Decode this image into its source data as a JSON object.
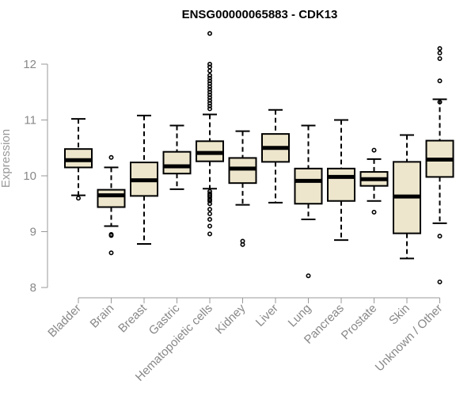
{
  "chart_data": {
    "type": "box",
    "title": "ENSG00000065883 - CDK13",
    "xlabel": "",
    "ylabel": "Expression",
    "ylim": [
      8,
      12.6
    ],
    "yticks": [
      8,
      9,
      10,
      11,
      12
    ],
    "grid": false,
    "legend": "none",
    "colors": {
      "box_fill": "#ede6cc",
      "stroke": "#000000",
      "text": "#888888"
    },
    "categories": [
      "Bladder",
      "Brain",
      "Breast",
      "Gastric",
      "Hematopoietic cells",
      "Kidney",
      "Liver",
      "Lung",
      "Pancreas",
      "Prostate",
      "Skin",
      "Unknown / Other"
    ],
    "boxes": [
      {
        "q1": 10.15,
        "median": 10.28,
        "q3": 10.48,
        "low": 9.65,
        "high": 11.02,
        "outliers": [
          9.6
        ]
      },
      {
        "q1": 9.44,
        "median": 9.65,
        "q3": 9.75,
        "low": 9.1,
        "high": 10.15,
        "outliers": [
          10.33,
          8.95,
          8.93,
          8.62
        ]
      },
      {
        "q1": 9.64,
        "median": 9.92,
        "q3": 10.24,
        "low": 8.78,
        "high": 11.08,
        "outliers": []
      },
      {
        "q1": 10.04,
        "median": 10.17,
        "q3": 10.43,
        "low": 9.76,
        "high": 10.9,
        "outliers": []
      },
      {
        "q1": 10.26,
        "median": 10.41,
        "q3": 10.62,
        "low": 9.77,
        "high": 11.1,
        "outliers": [
          12.55,
          12.0,
          11.95,
          11.88,
          11.8,
          11.75,
          11.7,
          11.65,
          11.6,
          11.55,
          11.5,
          11.45,
          11.4,
          11.35,
          11.3,
          11.25,
          11.2,
          9.72,
          9.68,
          9.65,
          9.62,
          9.58,
          9.55,
          9.5,
          9.4,
          9.32,
          9.22,
          9.1,
          8.96
        ]
      },
      {
        "q1": 9.87,
        "median": 10.13,
        "q3": 10.32,
        "low": 9.48,
        "high": 10.8,
        "outliers": [
          8.83,
          8.77
        ]
      },
      {
        "q1": 10.25,
        "median": 10.5,
        "q3": 10.75,
        "low": 9.52,
        "high": 11.18,
        "outliers": []
      },
      {
        "q1": 9.5,
        "median": 9.91,
        "q3": 10.13,
        "low": 9.22,
        "high": 10.9,
        "outliers": [
          8.21
        ]
      },
      {
        "q1": 9.55,
        "median": 9.98,
        "q3": 10.13,
        "low": 8.85,
        "high": 11.0,
        "outliers": []
      },
      {
        "q1": 9.82,
        "median": 9.94,
        "q3": 10.07,
        "low": 9.55,
        "high": 10.3,
        "outliers": [
          10.46,
          9.35
        ]
      },
      {
        "q1": 8.97,
        "median": 9.63,
        "q3": 10.25,
        "low": 8.52,
        "high": 10.73,
        "outliers": []
      },
      {
        "q1": 9.98,
        "median": 10.29,
        "q3": 10.63,
        "low": 9.15,
        "high": 11.37,
        "outliers": [
          12.28,
          12.2,
          12.1,
          11.7,
          11.32,
          8.92,
          8.1
        ]
      }
    ]
  }
}
